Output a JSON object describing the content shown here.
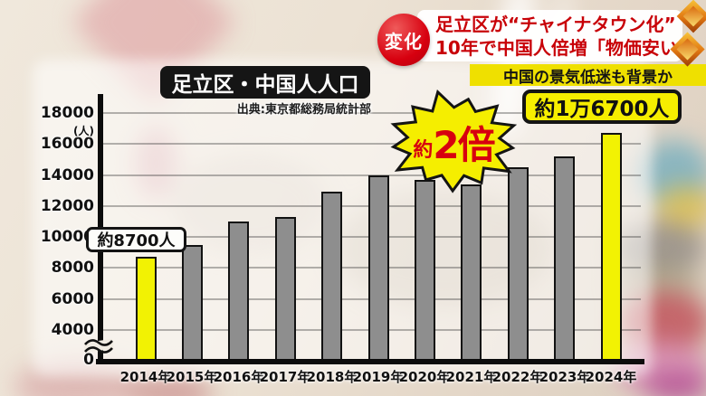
{
  "header": {
    "badge_label": "変化",
    "headline_line1": "足立区が“チャイナタウン化”",
    "headline_line2": "10年で中国人倍増「物価安い」",
    "subheadline": "中国の景気低迷も背景か"
  },
  "chart": {
    "title": "足立区・中国人人口",
    "source": "出典:東京都総務局統計部",
    "unit_label": "(人)",
    "annotation_left": "約8700人",
    "annotation_right": "約1万6700人",
    "burst_small": "約",
    "burst_big": "2倍"
  },
  "chart_data": {
    "type": "bar",
    "title": "足立区・中国人人口",
    "source": "出典:東京都総務局統計部",
    "unit": "人",
    "categories": [
      "2014年",
      "2015年",
      "2016年",
      "2017年",
      "2018年",
      "2019年",
      "2020年",
      "2021年",
      "2022年",
      "2023年",
      "2024年"
    ],
    "values": [
      8700,
      9500,
      11000,
      11300,
      12900,
      14000,
      13700,
      13400,
      14500,
      15200,
      16700
    ],
    "highlighted_categories": [
      "2014年",
      "2024年"
    ],
    "yticks": [
      0,
      4000,
      6000,
      8000,
      10000,
      12000,
      14000,
      16000,
      18000
    ],
    "ylim": [
      0,
      18000
    ],
    "axis_break_between": [
      0,
      4000
    ],
    "grid": true,
    "legend": false,
    "annotations": [
      {
        "target": "2014年",
        "text": "約8700人"
      },
      {
        "target": "2024年",
        "text": "約1万6700人"
      },
      {
        "target": "2014年→2024年",
        "text": "約2倍"
      }
    ]
  },
  "colors": {
    "bar_default": "#8e8e8e",
    "bar_highlight": "#f2f203",
    "bar_border": "#121212",
    "badge_red": "#d7000f",
    "headline_red": "#c80007",
    "strip_yellow": "#efe000",
    "burst_yellow": "#f5ee00",
    "label_yellow": "#f6ee00"
  }
}
